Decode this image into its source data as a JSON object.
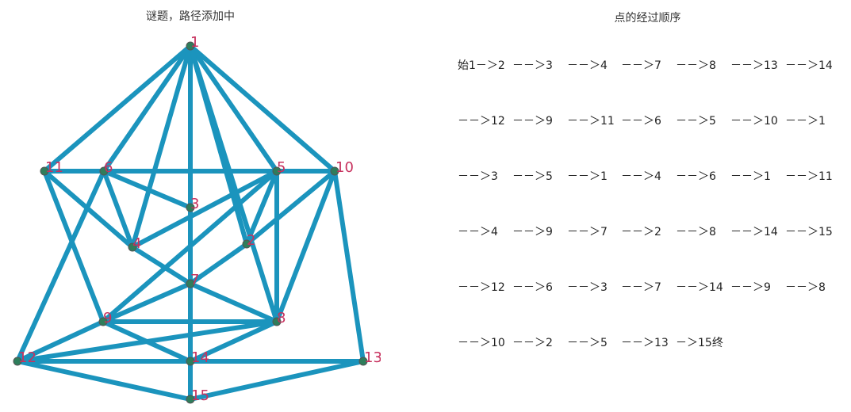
{
  "graph": {
    "title": "谜题，路径添加中",
    "edge_color": "#1b94bd",
    "node_color": "#2e7d5b",
    "label_color": "#c7315e",
    "nodes": [
      "1",
      "2",
      "3",
      "4",
      "5",
      "6",
      "7",
      "8",
      "9",
      "10",
      "11",
      "12",
      "13",
      "14",
      "15"
    ],
    "edges": [
      [
        "1",
        "11"
      ],
      [
        "1",
        "6"
      ],
      [
        "1",
        "4"
      ],
      [
        "1",
        "7"
      ],
      [
        "1",
        "14"
      ],
      [
        "1",
        "2"
      ],
      [
        "1",
        "5"
      ],
      [
        "1",
        "10"
      ],
      [
        "1",
        "8"
      ],
      [
        "11",
        "6"
      ],
      [
        "6",
        "5"
      ],
      [
        "5",
        "10"
      ],
      [
        "11",
        "4"
      ],
      [
        "11",
        "9"
      ],
      [
        "6",
        "3"
      ],
      [
        "6",
        "12"
      ],
      [
        "6",
        "4"
      ],
      [
        "5",
        "4"
      ],
      [
        "5",
        "2"
      ],
      [
        "5",
        "8"
      ],
      [
        "5",
        "9"
      ],
      [
        "10",
        "2"
      ],
      [
        "10",
        "8"
      ],
      [
        "10",
        "13"
      ],
      [
        "4",
        "7"
      ],
      [
        "2",
        "7"
      ],
      [
        "7",
        "8"
      ],
      [
        "7",
        "9"
      ],
      [
        "7",
        "14"
      ],
      [
        "9",
        "8"
      ],
      [
        "9",
        "14"
      ],
      [
        "9",
        "12"
      ],
      [
        "8",
        "14"
      ],
      [
        "8",
        "12"
      ],
      [
        "12",
        "14"
      ],
      [
        "14",
        "13"
      ],
      [
        "12",
        "15"
      ],
      [
        "15",
        "13"
      ],
      [
        "14",
        "15"
      ]
    ]
  },
  "order": {
    "title": "点的经过顺序",
    "rows": [
      [
        "始1－＞2",
        "－－＞3",
        "－－＞4",
        "－－＞7",
        "－－＞8",
        "－－＞13",
        "－－＞14"
      ],
      [
        "－－＞12",
        "－－＞9",
        "－－＞11",
        "－－＞6",
        "－－＞5",
        "－－＞10",
        "－－＞1"
      ],
      [
        "－－＞3",
        "－－＞5",
        "－－＞1",
        "－－＞4",
        "－－＞6",
        "－－＞1",
        "－－＞11"
      ],
      [
        "－－＞4",
        "－－＞9",
        "－－＞7",
        "－－＞2",
        "－－＞8",
        "－－＞14",
        "－－＞15"
      ],
      [
        "－－＞12",
        "－－＞6",
        "－－＞3",
        "－－＞7",
        "－－＞14",
        "－－＞9",
        "－－＞8"
      ],
      [
        "－－＞10",
        "－－＞2",
        "－－＞5",
        "－－＞13",
        "－＞15终"
      ]
    ]
  }
}
